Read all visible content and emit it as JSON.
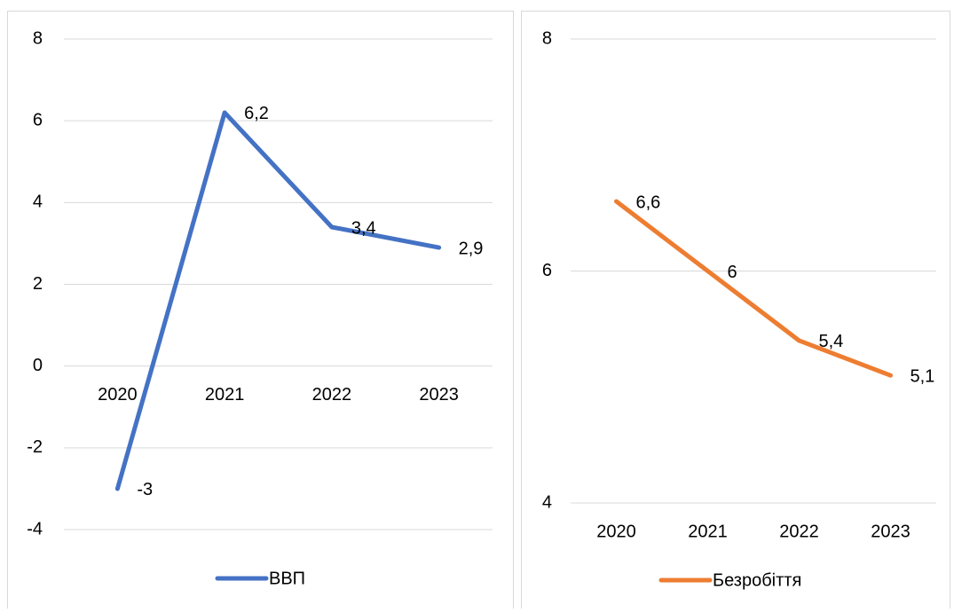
{
  "chart_data": [
    {
      "type": "line",
      "categories": [
        "2020",
        "2021",
        "2022",
        "2023"
      ],
      "series": [
        {
          "name": "ВВП",
          "color": "#4472c4",
          "values": [
            -3,
            6.2,
            3.4,
            2.9
          ],
          "value_labels": [
            "-3",
            "6,2",
            "3,4",
            "2,9"
          ]
        }
      ],
      "ylim": [
        -4,
        8
      ],
      "yticks": [
        -4,
        -2,
        0,
        2,
        4,
        6,
        8
      ],
      "grid": true,
      "legend": "bottom"
    },
    {
      "type": "line",
      "categories": [
        "2020",
        "2021",
        "2022",
        "2023"
      ],
      "series": [
        {
          "name": "Безробіття",
          "color": "#ed7d31",
          "values": [
            6.6,
            6,
            5.4,
            5.1
          ],
          "value_labels": [
            "6,6",
            "6",
            "5,4",
            "5,1"
          ]
        }
      ],
      "ylim": [
        4,
        8
      ],
      "yticks": [
        4,
        6,
        8
      ],
      "grid": true,
      "legend": "bottom"
    }
  ]
}
